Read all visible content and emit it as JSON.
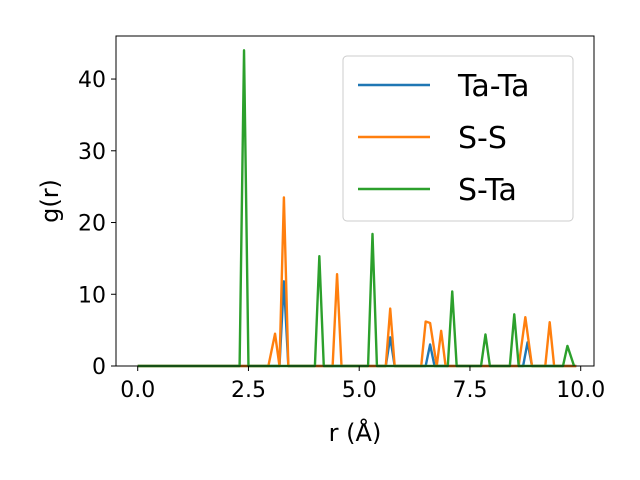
{
  "chart_data": {
    "type": "line",
    "xlabel": "r (Å)",
    "ylabel": "g(r)",
    "xlim": [
      -0.49,
      10.3
    ],
    "ylim": [
      0,
      46
    ],
    "x_ticks": [
      "0.0",
      "2.5",
      "5.0",
      "7.5",
      "10.0"
    ],
    "y_ticks": [
      "0",
      "10",
      "20",
      "30",
      "40"
    ],
    "grid": false,
    "legend_position": "top-right",
    "series": [
      {
        "name": "Ta-Ta",
        "color": "#1f77b4",
        "x": [
          0.0,
          3.2,
          3.3,
          3.4,
          5.6,
          5.7,
          5.8,
          6.5,
          6.6,
          6.7,
          8.7,
          8.8,
          8.9,
          9.9
        ],
        "y": [
          0,
          0,
          11.8,
          0,
          0,
          4.0,
          0,
          0,
          3.0,
          0,
          0,
          3.3,
          0,
          0
        ]
      },
      {
        "name": "S-S",
        "color": "#ff7f0e",
        "x": [
          0.0,
          2.95,
          3.1,
          3.2,
          3.3,
          3.4,
          4.4,
          4.5,
          4.6,
          5.6,
          5.7,
          5.8,
          6.4,
          6.5,
          6.6,
          6.75,
          6.85,
          6.95,
          8.6,
          8.75,
          8.9,
          9.2,
          9.3,
          9.4,
          9.9
        ],
        "y": [
          0,
          0,
          4.5,
          0,
          23.5,
          0,
          0,
          12.8,
          0,
          0,
          8.0,
          0,
          0,
          6.2,
          6.0,
          0,
          4.9,
          0,
          0,
          6.8,
          0,
          0,
          6.1,
          0,
          0
        ]
      },
      {
        "name": "S-Ta",
        "color": "#2ca02c",
        "x": [
          0.0,
          2.3,
          2.4,
          2.5,
          4.0,
          4.1,
          4.2,
          5.2,
          5.3,
          5.4,
          7.0,
          7.1,
          7.2,
          7.75,
          7.85,
          7.95,
          8.4,
          8.5,
          8.6,
          9.6,
          9.7,
          9.85
        ],
        "y": [
          0,
          0,
          44.0,
          0,
          0,
          15.3,
          0,
          0,
          18.4,
          0,
          0,
          10.4,
          0,
          0,
          4.4,
          0,
          0,
          7.2,
          0,
          0,
          2.8,
          0
        ]
      }
    ]
  }
}
